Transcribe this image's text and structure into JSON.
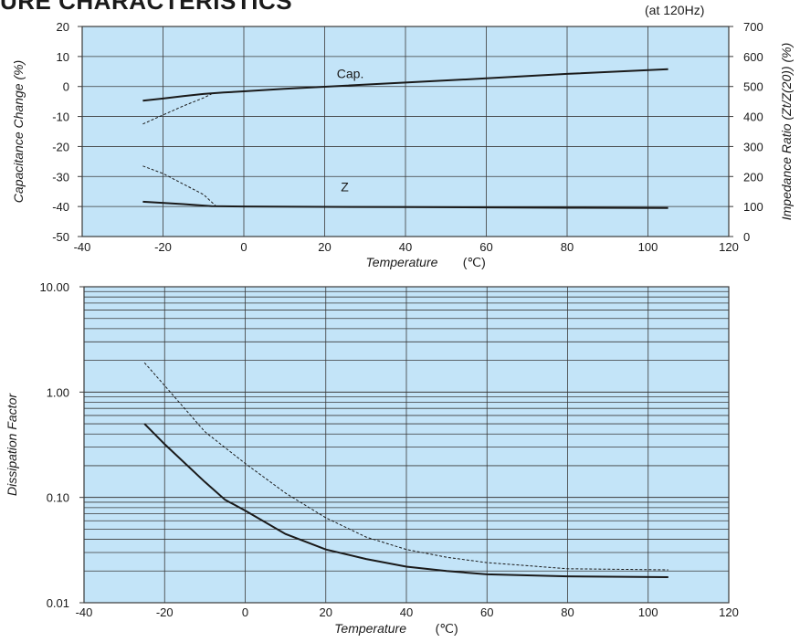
{
  "header": {
    "title": "URE CHARACTERISTICS",
    "condition": "(at 120Hz)"
  },
  "colors": {
    "plot_background": "#c3e4f8",
    "grid": "#3a3a3a",
    "line": "#1a1a1a"
  },
  "chart_data": [
    {
      "type": "line",
      "xlabel": "Temperature",
      "xunit": "(℃)",
      "ylabel": "Capacitance Change  (%)",
      "ylabel2": "Impedance Ratio  (Zt/Z(20))  (%)",
      "xlim": [
        -40,
        120
      ],
      "ylim": [
        -50,
        20
      ],
      "ylim2": [
        0,
        700
      ],
      "xticks": [
        "-40",
        "-20",
        "0",
        "20",
        "40",
        "60",
        "80",
        "100",
        "120"
      ],
      "yticks": [
        "20",
        "10",
        "0",
        "-10",
        "-20",
        "-30",
        "-40",
        "-50"
      ],
      "yticks2": [
        "700",
        "600",
        "500",
        "400",
        "300",
        "200",
        "100",
        "0"
      ],
      "grid": true,
      "series": [
        {
          "name": "Cap.",
          "axis": "left",
          "style": "solid",
          "x": [
            -25,
            -20,
            -15,
            -10,
            -5,
            0,
            10,
            20,
            40,
            60,
            80,
            105
          ],
          "y": [
            -4.7,
            -4.0,
            -3.2,
            -2.5,
            -2.0,
            -1.6,
            -0.8,
            -0.1,
            1.3,
            2.7,
            4.2,
            5.8
          ]
        },
        {
          "axis": "left",
          "style": "dashed",
          "x": [
            -25,
            -20,
            -15,
            -10,
            -8
          ],
          "y": [
            -12.5,
            -9.5,
            -6.5,
            -3.8,
            -2.5
          ]
        },
        {
          "name": "Z",
          "axis": "right",
          "style": "solid",
          "x": [
            -25,
            -15,
            -8,
            0,
            20,
            40,
            60,
            80,
            105
          ],
          "y": [
            116,
            108,
            101,
            100,
            99,
            98,
            97,
            96,
            95
          ]
        },
        {
          "axis": "right",
          "style": "dashed",
          "x": [
            -25,
            -20,
            -15,
            -10,
            -7
          ],
          "y": [
            235,
            210,
            175,
            140,
            103
          ]
        }
      ]
    },
    {
      "type": "line",
      "xlabel": "Temperature",
      "xunit": "(℃)",
      "ylabel": "Dissipation Factor",
      "xlim": [
        -40,
        120
      ],
      "ylim": [
        0.01,
        10
      ],
      "yscale": "log",
      "xticks": [
        "-40",
        "-20",
        "0",
        "20",
        "40",
        "60",
        "80",
        "100",
        "120"
      ],
      "yticks": [
        "10.00",
        "1.00",
        "0.10",
        "0.01"
      ],
      "grid": true,
      "series": [
        {
          "style": "solid",
          "x": [
            -25,
            -20,
            -10,
            -5,
            0,
            10,
            20,
            30,
            40,
            50,
            60,
            80,
            105
          ],
          "y": [
            0.5,
            0.32,
            0.14,
            0.095,
            0.075,
            0.045,
            0.032,
            0.026,
            0.022,
            0.02,
            0.0186,
            0.0178,
            0.0175
          ]
        },
        {
          "style": "dashed",
          "x": [
            -25,
            -20,
            -10,
            0,
            10,
            20,
            30,
            40,
            50,
            60,
            80,
            105
          ],
          "y": [
            1.9,
            1.15,
            0.42,
            0.21,
            0.11,
            0.064,
            0.042,
            0.032,
            0.027,
            0.024,
            0.021,
            0.0205
          ]
        }
      ]
    }
  ]
}
